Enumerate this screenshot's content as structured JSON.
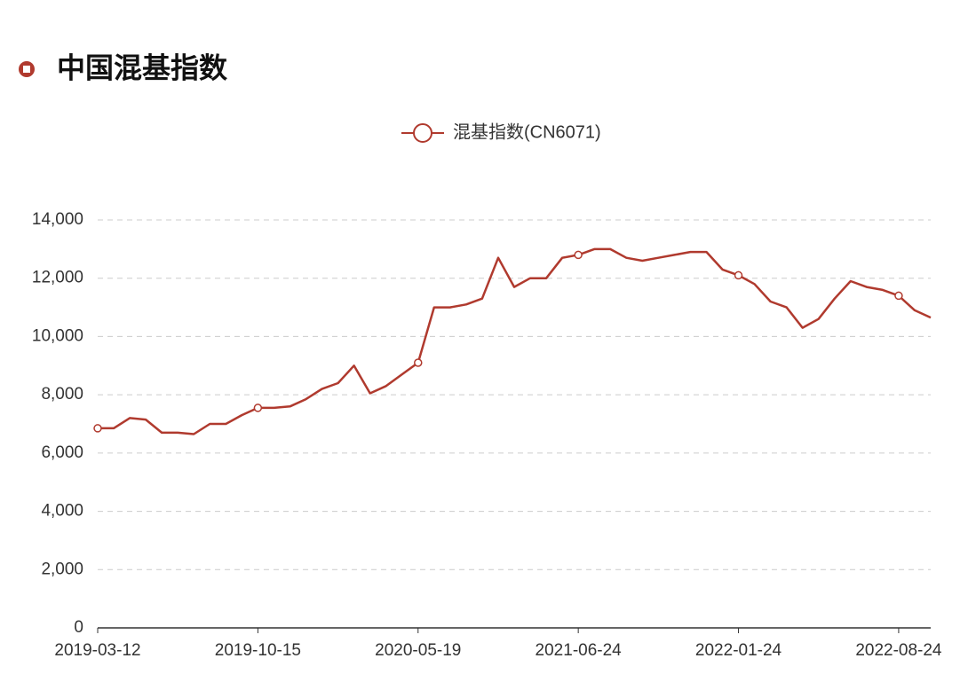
{
  "chart_data": {
    "type": "line",
    "title": "中国混基指数",
    "categories": [
      "2019-03-12",
      null,
      null,
      null,
      null,
      null,
      null,
      null,
      null,
      null,
      "2019-10-15",
      null,
      null,
      null,
      null,
      null,
      null,
      null,
      null,
      null,
      "2020-05-19",
      null,
      null,
      null,
      null,
      null,
      null,
      null,
      null,
      null,
      "2021-06-24",
      null,
      null,
      null,
      null,
      null,
      null,
      null,
      null,
      null,
      "2022-01-24",
      null,
      null,
      null,
      null,
      null,
      null,
      null,
      null,
      null,
      "2022-08-24",
      null,
      null
    ],
    "series": [
      {
        "name": "混基指数(CN6071)",
        "color": "#b03a2e",
        "values": [
          6850,
          6850,
          7200,
          7150,
          6700,
          6700,
          6650,
          7000,
          7000,
          7300,
          7550,
          7550,
          7600,
          7850,
          8200,
          8400,
          9000,
          8050,
          8300,
          8700,
          9100,
          11000,
          11000,
          11100,
          11300,
          12700,
          11700,
          12000,
          12000,
          12700,
          12800,
          13000,
          13000,
          12700,
          12600,
          12700,
          12800,
          12900,
          12900,
          12300,
          12100,
          11800,
          11200,
          11000,
          10300,
          10600,
          11300,
          11900,
          11700,
          11600,
          11400,
          10900,
          10650
        ]
      }
    ],
    "ylim": [
      0,
      14000
    ],
    "yticks": [
      0,
      {
        "value": 2000,
        "label": "2,000"
      },
      {
        "value": 4000,
        "label": "4,000"
      },
      {
        "value": 6000,
        "label": "6,000"
      },
      {
        "value": 8000,
        "label": "8,000"
      },
      {
        "value": 10000,
        "label": "10,000"
      },
      {
        "value": 12000,
        "label": "12,000"
      },
      {
        "value": 14000,
        "label": "14,000"
      }
    ],
    "grid": true
  }
}
